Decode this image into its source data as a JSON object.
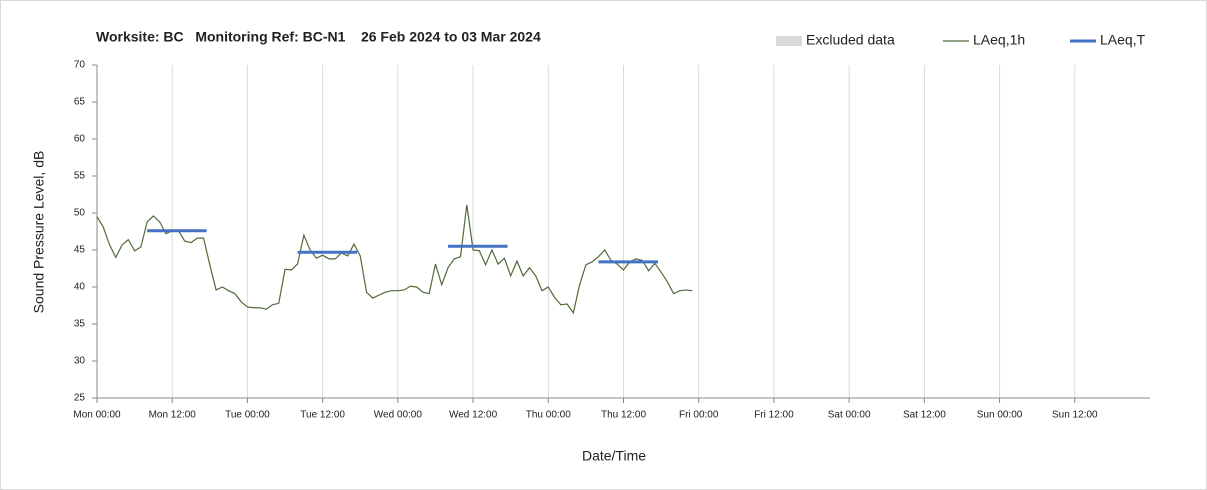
{
  "chart_data": {
    "type": "line",
    "title": "Worksite: BC   Monitoring Ref: BC-N1    26 Feb 2024 to 03 Mar 2024",
    "x_label": "Date/Time",
    "y_label": "Sound Pressure Level, dB",
    "xlim": [
      0,
      168
    ],
    "xticks": [
      {
        "value": 0,
        "label": "Mon 00:00"
      },
      {
        "value": 12,
        "label": "Mon 12:00"
      },
      {
        "value": 24,
        "label": "Tue 00:00"
      },
      {
        "value": 36,
        "label": "Tue 12:00"
      },
      {
        "value": 48,
        "label": "Wed 00:00"
      },
      {
        "value": 60,
        "label": "Wed 12:00"
      },
      {
        "value": 72,
        "label": "Thu 00:00"
      },
      {
        "value": 84,
        "label": "Thu 12:00"
      },
      {
        "value": 96,
        "label": "Fri 00:00"
      },
      {
        "value": 108,
        "label": "Fri 12:00"
      },
      {
        "value": 120,
        "label": "Sat 00:00"
      },
      {
        "value": 132,
        "label": "Sat 12:00"
      },
      {
        "value": 144,
        "label": "Sun 00:00"
      },
      {
        "value": 156,
        "label": "Sun 12:00"
      }
    ],
    "ylim": [
      25,
      70
    ],
    "yticks": [
      25,
      30,
      35,
      40,
      45,
      50,
      55,
      60,
      65,
      70
    ],
    "grid": "x",
    "legend": "top-right",
    "series": [
      {
        "name": "Excluded data",
        "color": "#d9d9d9",
        "values": []
      },
      {
        "name": "LAeq,1h",
        "color": "#4f6b3a",
        "x": [
          0,
          1,
          2,
          3,
          4,
          5,
          6,
          7,
          8,
          9,
          10,
          11,
          12,
          13,
          14,
          15,
          16,
          17,
          18,
          19,
          20,
          21,
          22,
          23,
          24,
          25,
          26,
          27,
          28,
          29,
          30,
          31,
          32,
          33,
          34,
          35,
          36,
          37,
          38,
          39,
          40,
          41,
          42,
          43,
          44,
          45,
          46,
          47,
          48,
          49,
          50,
          51,
          52,
          53,
          54,
          55,
          56,
          57,
          58,
          59,
          60,
          61,
          62,
          63,
          64,
          65,
          66,
          67,
          68,
          69,
          70,
          71,
          72,
          73,
          74,
          75,
          76,
          77,
          78,
          79,
          80,
          81,
          82,
          83,
          84,
          85,
          86,
          87,
          88,
          89,
          90,
          91,
          92,
          93,
          94,
          95
        ],
        "values": [
          49.5,
          48.1,
          45.7,
          44,
          45.7,
          46.4,
          44.9,
          45.4,
          48.8,
          49.6,
          48.8,
          47.2,
          47.6,
          47.6,
          46.2,
          46,
          46.6,
          46.6,
          43,
          39.6,
          40,
          39.5,
          39.1,
          38,
          37.3,
          37.2,
          37.2,
          37,
          37.6,
          37.8,
          42.4,
          42.3,
          43.1,
          47,
          45,
          43.9,
          44.3,
          43.8,
          43.8,
          44.6,
          44.2,
          45.8,
          44.2,
          39.3,
          38.5,
          38.9,
          39.3,
          39.5,
          39.5,
          39.6,
          40.1,
          40,
          39.3,
          39.1,
          43.1,
          40.3,
          42.6,
          43.8,
          44.1,
          51.1,
          45,
          44.9,
          43,
          45,
          43.1,
          43.9,
          41.5,
          43.5,
          41.5,
          42.6,
          41.5,
          39.5,
          40,
          38.6,
          37.6,
          37.7,
          36.5,
          40.3,
          43,
          43.4,
          44.1,
          45,
          43.6,
          43.1,
          42.3,
          43.4,
          43.8,
          43.6,
          42.2,
          43.2,
          42,
          40.7,
          39.1,
          39.5,
          39.6,
          39.5
        ]
      },
      {
        "name": "LAeq,T",
        "color": "#4472c4",
        "x_start": [
          8,
          32,
          56,
          80
        ],
        "x_end": [
          17.5,
          41.5,
          65.5,
          89.5
        ],
        "values": [
          47.6,
          44.7,
          45.5,
          43.4
        ]
      }
    ]
  }
}
